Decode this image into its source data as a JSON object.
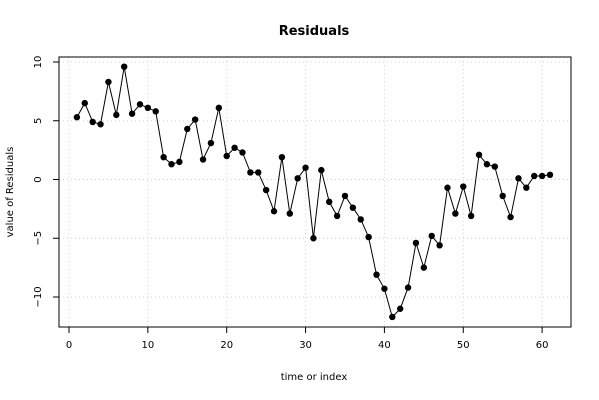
{
  "chart_data": {
    "type": "line",
    "title": "Residuals",
    "xlabel": "time or index",
    "ylabel": "value of Residuals",
    "xlim": [
      0,
      61
    ],
    "ylim": [
      -12,
      10
    ],
    "xticks": [
      0,
      10,
      20,
      30,
      40,
      50,
      60
    ],
    "yticks": [
      -10,
      -5,
      0,
      5,
      10
    ],
    "grid": true,
    "series": [
      {
        "x": [
          1,
          2,
          3,
          4,
          5,
          6,
          7,
          8,
          9,
          10,
          11,
          12,
          13,
          14,
          15,
          16,
          17,
          18,
          19,
          20,
          21,
          22,
          23,
          24,
          25,
          26,
          27,
          28,
          29,
          30,
          31,
          32,
          33,
          34,
          35,
          36,
          37,
          38,
          39,
          40,
          41,
          42,
          43,
          44,
          45,
          46,
          47,
          48,
          49,
          50,
          51,
          52,
          53,
          54,
          55,
          56,
          57,
          58,
          59,
          60,
          61
        ],
        "values": [
          5.3,
          6.5,
          4.9,
          4.7,
          8.3,
          5.5,
          9.6,
          5.6,
          6.4,
          6.1,
          5.8,
          1.9,
          1.3,
          1.5,
          4.3,
          5.1,
          1.7,
          3.1,
          6.1,
          2.0,
          2.7,
          2.3,
          0.6,
          0.6,
          -0.9,
          -2.7,
          1.9,
          -2.9,
          0.1,
          1.0,
          -5.0,
          0.8,
          -1.9,
          -3.1,
          -1.4,
          -2.4,
          -3.4,
          -4.9,
          -8.1,
          -9.3,
          -11.7,
          -11.0,
          -9.2,
          -5.4,
          -7.5,
          -4.8,
          -5.6,
          -0.7,
          -2.9,
          -0.6,
          -3.1,
          2.1,
          1.3,
          1.1,
          -1.4,
          -3.2,
          0.1,
          -0.7,
          0.3,
          0.3,
          0.4
        ]
      }
    ]
  }
}
